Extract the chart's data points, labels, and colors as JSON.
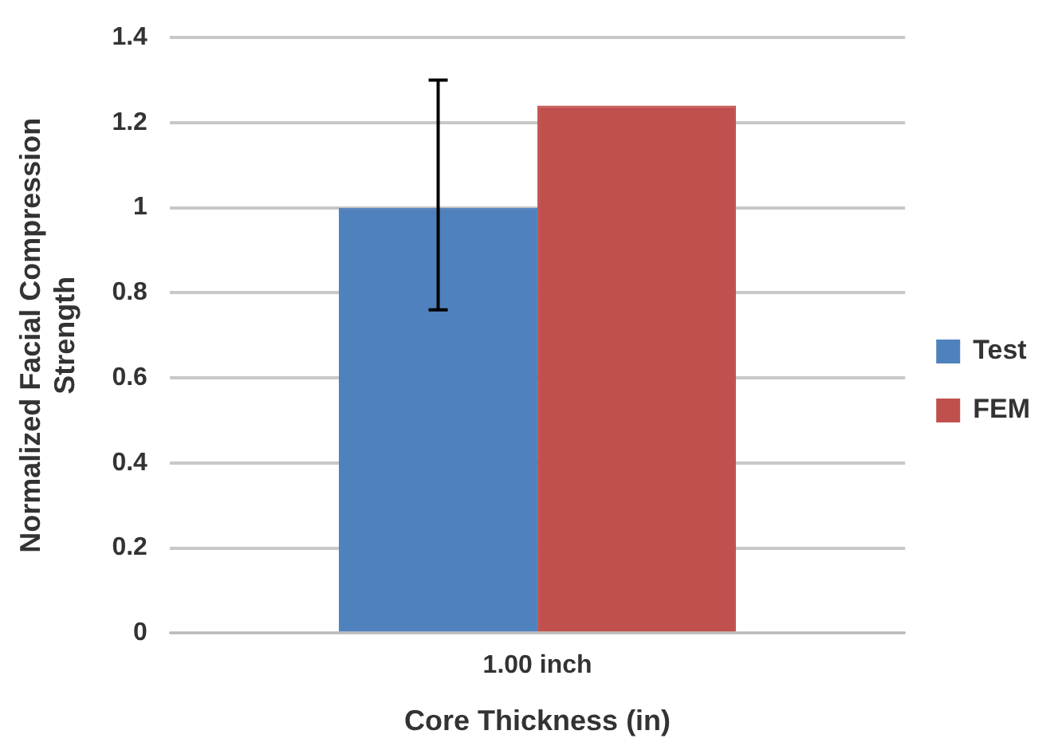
{
  "chart_data": {
    "type": "bar",
    "xlabel": "Core Thickness (in)",
    "ylabel": "Normalized Facial Compression Strength",
    "categories": [
      "1.00 inch"
    ],
    "series": [
      {
        "name": "Test",
        "color": "#4f81bd",
        "values": [
          1.0
        ],
        "errors": [
          [
            0.76,
            1.3
          ]
        ]
      },
      {
        "name": "FEM",
        "color": "#c0504d",
        "values": [
          1.24
        ]
      }
    ],
    "ylim": [
      0,
      1.4
    ],
    "yticks": [
      0,
      0.2,
      0.4,
      0.6,
      0.8,
      1,
      1.2,
      1.4
    ],
    "grid": "y",
    "legend": "right"
  }
}
